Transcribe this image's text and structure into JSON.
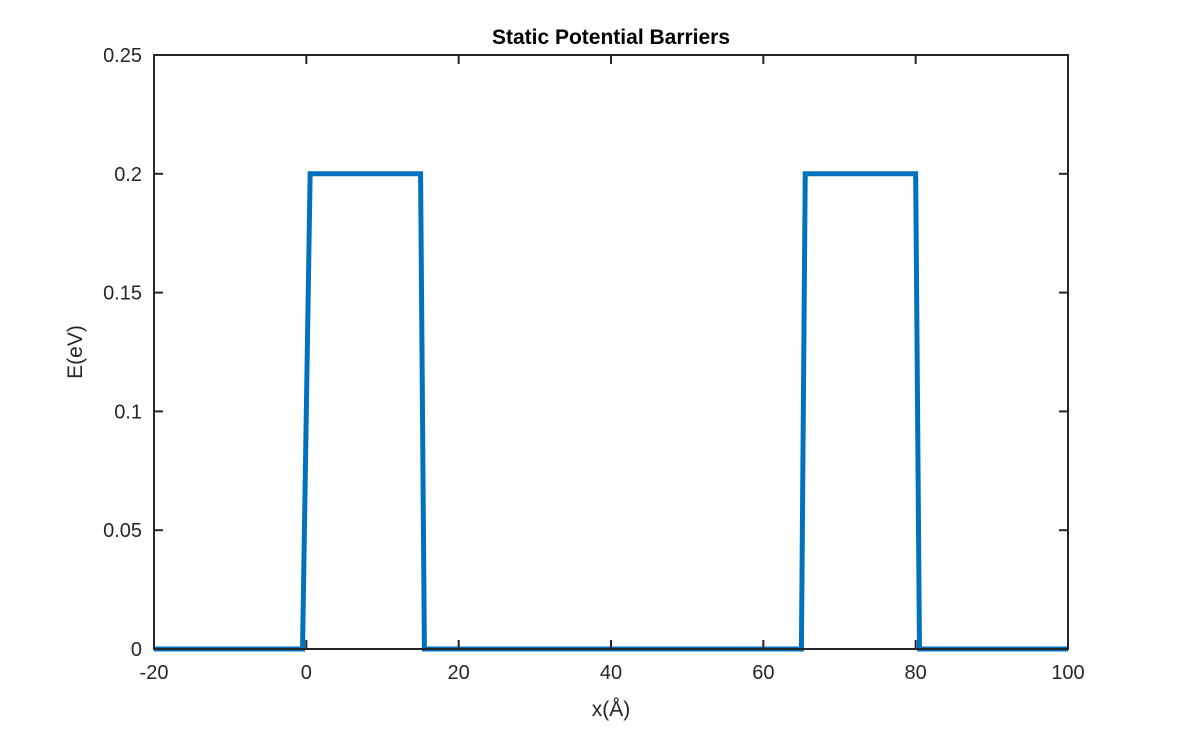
{
  "chart_data": {
    "type": "line",
    "title": "Static Potential Barriers",
    "xlabel": "x(Å)",
    "ylabel": "E(eV)",
    "xlim": [
      -20,
      100
    ],
    "ylim": [
      0,
      0.25
    ],
    "xticks": [
      -20,
      0,
      20,
      40,
      60,
      80,
      100
    ],
    "yticks": [
      0,
      0.05,
      0.1,
      0.15,
      0.2,
      0.25
    ],
    "xtick_labels": [
      "-20",
      "0",
      "20",
      "40",
      "60",
      "80",
      "100"
    ],
    "ytick_labels": [
      "0",
      "0.05",
      "0.1",
      "0.15",
      "0.2",
      "0.25"
    ],
    "grid": false,
    "series": [
      {
        "color": "#0072BD",
        "x": [
          -20,
          -0.5,
          0.5,
          15,
          15.5,
          65,
          65.5,
          80,
          80.5,
          100
        ],
        "y": [
          0,
          0,
          0.2,
          0.2,
          0,
          0,
          0.2,
          0.2,
          0,
          0
        ]
      }
    ]
  }
}
